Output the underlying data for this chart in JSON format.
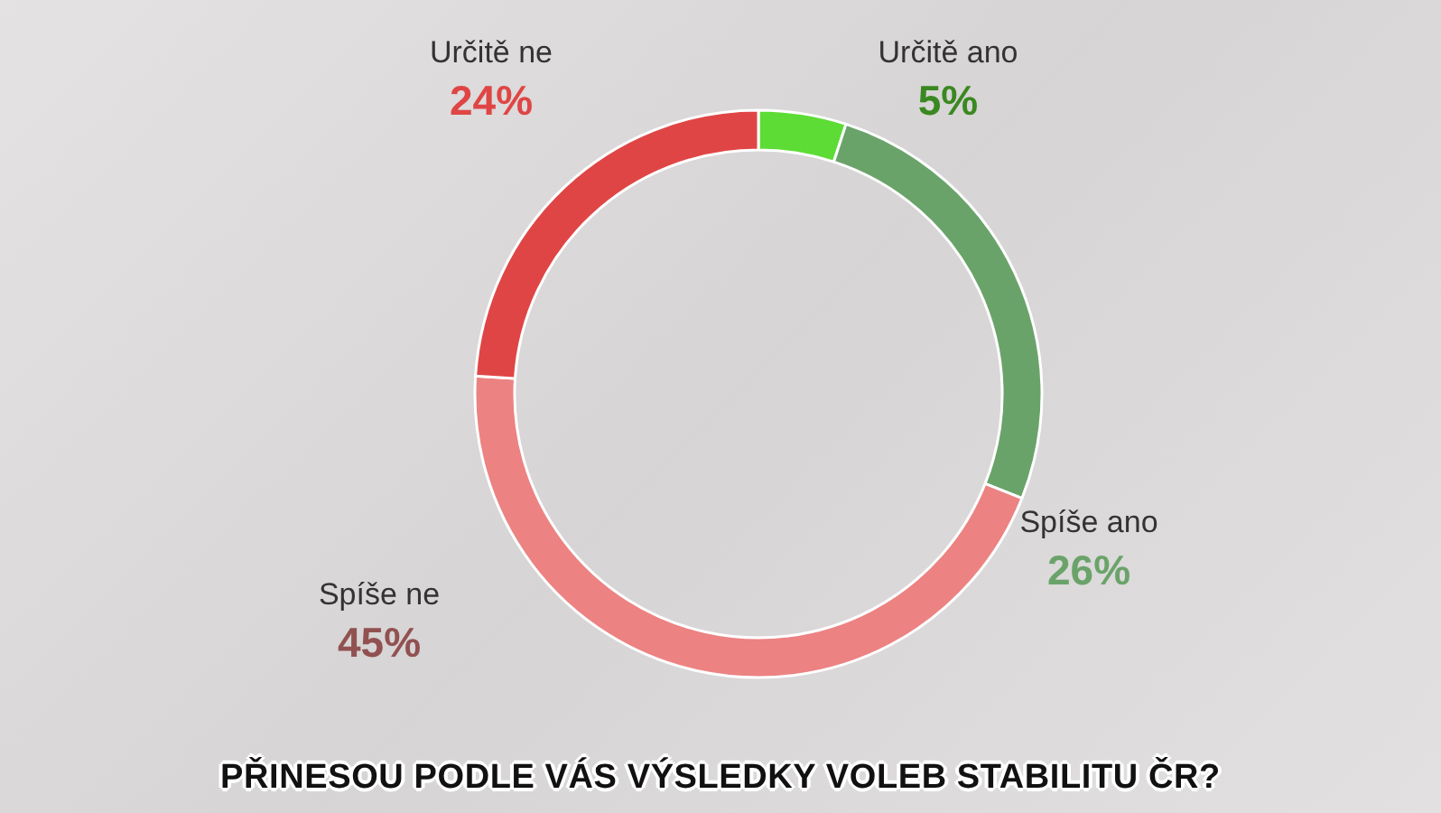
{
  "chart_data": {
    "type": "donut",
    "title": "PŘINESOU PODLE VÁS VÝSLEDKY VOLEB STABILITU ČR?",
    "categories": [
      "Určitě ano",
      "Spíše ano",
      "Spíše ne",
      "Určitě ne"
    ],
    "values": [
      5,
      26,
      45,
      24
    ],
    "colors": [
      "#5ddc36",
      "#6aa36a",
      "#ec8282",
      "#e04545"
    ],
    "value_labels": [
      "5%",
      "26%",
      "45%",
      "24%"
    ],
    "legend": false
  }
}
